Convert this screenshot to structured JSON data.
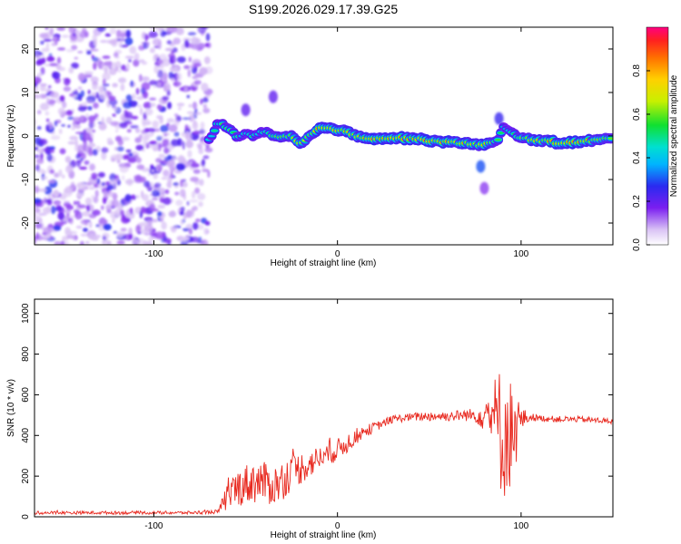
{
  "title": "S199.2026.029.17.39.G25",
  "colors": {
    "noise": "#7b2ff2",
    "ridge_core": "#ff2a2a",
    "snr_line": "#e8281e"
  },
  "chart_data": [
    {
      "type": "heatmap",
      "name": "spectrogram",
      "xlabel": "Height of straight line (km)",
      "ylabel": "Frequency (Hz)",
      "xlim": [
        -165,
        150
      ],
      "ylim": [
        -25,
        25
      ],
      "xticks": [
        -100,
        0,
        100
      ],
      "yticks": [
        -20,
        -10,
        0,
        10,
        20
      ],
      "noise_region_x": [
        -165,
        -70
      ],
      "ridge": {
        "x": [
          -70,
          -65,
          -60,
          -55,
          -50,
          -45,
          -40,
          -35,
          -30,
          -25,
          -20,
          -15,
          -10,
          -5,
          0,
          5,
          10,
          20,
          30,
          40,
          50,
          60,
          70,
          75,
          80,
          85,
          88,
          90,
          95,
          100,
          110,
          120,
          130,
          140,
          150
        ],
        "freq": [
          -1,
          3,
          2,
          0,
          0.5,
          0,
          1,
          0,
          -0.5,
          0,
          -2,
          0,
          1.5,
          2,
          1.5,
          1,
          0,
          -0.5,
          -0.5,
          -0.5,
          -1,
          -1.5,
          -1.5,
          -2,
          -2,
          -1.5,
          -1,
          2,
          1,
          -0.5,
          -1,
          -1.5,
          -1.5,
          -1,
          -0.5
        ],
        "amplitude": [
          0.4,
          0.5,
          0.55,
          0.5,
          0.45,
          0.5,
          0.5,
          0.6,
          0.7,
          0.75,
          0.7,
          0.7,
          0.85,
          0.85,
          0.85,
          0.8,
          0.85,
          0.9,
          0.85,
          0.8,
          0.85,
          0.85,
          0.8,
          0.75,
          0.8,
          0.6,
          0.5,
          0.4,
          0.5,
          0.6,
          0.8,
          0.9,
          0.9,
          0.75,
          0.5
        ]
      },
      "blobs": [
        {
          "x": -50,
          "freq": 6,
          "amplitude": 0.2
        },
        {
          "x": -35,
          "freq": 9,
          "amplitude": 0.2
        },
        {
          "x": 78,
          "freq": -7,
          "amplitude": 0.3
        },
        {
          "x": 80,
          "freq": -12,
          "amplitude": 0.15
        },
        {
          "x": 88,
          "freq": 4,
          "amplitude": 0.25
        }
      ],
      "colorbar": {
        "label": "Normalized spectral amplitude",
        "range": [
          0,
          1
        ],
        "ticks": [
          0.0,
          0.2,
          0.4,
          0.6,
          0.8
        ]
      }
    },
    {
      "type": "line",
      "name": "snr",
      "xlabel": "Height of straight line (km)",
      "ylabel": "SNR (10 * v/v)",
      "xlim": [
        -165,
        150
      ],
      "ylim": [
        0,
        1070
      ],
      "xticks": [
        -100,
        0,
        100
      ],
      "yticks": [
        0,
        200,
        400,
        600,
        800,
        1000
      ],
      "envelope": {
        "x": [
          -165,
          -140,
          -120,
          -100,
          -80,
          -65,
          -60,
          -55,
          -50,
          -45,
          -40,
          -35,
          -30,
          -25,
          -20,
          -15,
          -10,
          -5,
          0,
          5,
          10,
          15,
          20,
          25,
          30,
          40,
          50,
          60,
          70,
          75,
          80,
          85,
          88,
          90,
          92,
          94,
          96,
          98,
          100,
          105,
          110,
          120,
          130,
          140,
          150
        ],
        "mean": [
          20,
          20,
          20,
          20,
          20,
          25,
          100,
          140,
          160,
          175,
          170,
          150,
          180,
          220,
          240,
          260,
          290,
          310,
          330,
          360,
          395,
          420,
          440,
          460,
          480,
          490,
          495,
          495,
          500,
          500,
          500,
          500,
          440,
          420,
          400,
          410,
          430,
          450,
          480,
          490,
          485,
          480,
          480,
          475,
          470
        ],
        "amplitude": [
          8,
          8,
          8,
          8,
          8,
          10,
          70,
          90,
          100,
          110,
          100,
          100,
          100,
          90,
          80,
          70,
          60,
          60,
          55,
          50,
          40,
          30,
          25,
          20,
          20,
          20,
          25,
          25,
          30,
          35,
          80,
          180,
          300,
          350,
          300,
          280,
          220,
          180,
          60,
          20,
          15,
          15,
          15,
          15,
          15
        ]
      }
    }
  ]
}
